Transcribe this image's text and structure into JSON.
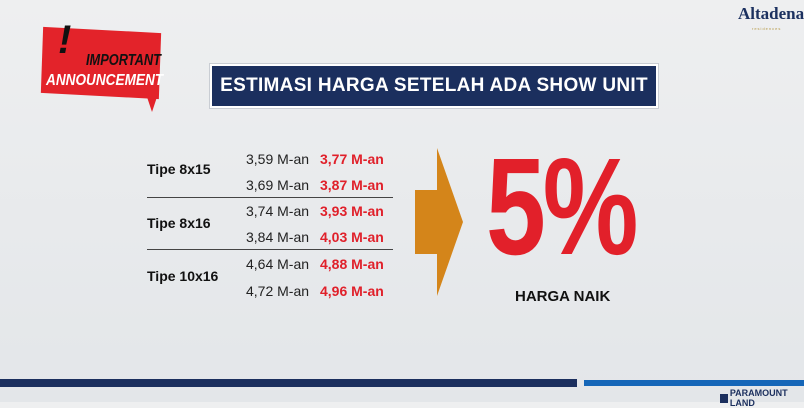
{
  "announcement": {
    "exclamation": "!",
    "line1": "IMPORTANT",
    "line2": "ANNOUNCEMENT"
  },
  "logo": {
    "name": "Altadena",
    "tagline": "residences"
  },
  "title": "ESTIMASI HARGA SETELAH ADA SHOW UNIT",
  "types": [
    {
      "label": "Tipe 8x15",
      "rows": [
        {
          "old": "3,59 M-an",
          "new": "3,77 M-an"
        },
        {
          "old": "3,69 M-an",
          "new": "3,87 M-an"
        }
      ]
    },
    {
      "label": "Tipe 8x16",
      "rows": [
        {
          "old": "3,74 M-an",
          "new": "3,93 M-an"
        },
        {
          "old": "3,84 M-an",
          "new": "4,03 M-an"
        }
      ]
    },
    {
      "label": "Tipe 10x16",
      "rows": [
        {
          "old": "4,64 M-an",
          "new": "4,88 M-an"
        },
        {
          "old": "4,72 M-an",
          "new": "4,96 M-an"
        }
      ]
    }
  ],
  "increase": {
    "value": "5%",
    "label": "HARGA NAIK"
  },
  "footer": {
    "brand": "PARAMOUNT LAND"
  },
  "colors": {
    "navy": "#1b2f5e",
    "red": "#e2202a",
    "orange": "#d4851a",
    "blue": "#1566b8"
  }
}
